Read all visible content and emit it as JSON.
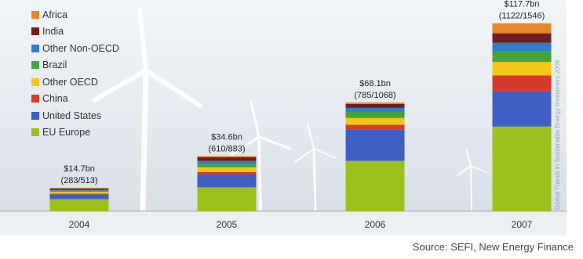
{
  "chart_data": {
    "type": "bar",
    "stacked": true,
    "categories": [
      "2004",
      "2005",
      "2006",
      "2007"
    ],
    "bar_labels": [
      {
        "amount": "$14.7bn",
        "deals": "(283/513)"
      },
      {
        "amount": "$34.6bn",
        "deals": "(610/883)"
      },
      {
        "amount": "$68.1bn",
        "deals": "(785/1068)"
      },
      {
        "amount": "$117.7bn",
        "deals": "(1122/1546)"
      }
    ],
    "totals": [
      14.7,
      34.6,
      68.1,
      117.7
    ],
    "series": [
      {
        "name": "EU Europe",
        "color": "#9cc11d",
        "values": [
          7.6,
          15.0,
          31.5,
          53.0
        ]
      },
      {
        "name": "United States",
        "color": "#3f5fc4",
        "values": [
          3.0,
          8.0,
          19.5,
          22.0
        ]
      },
      {
        "name": "China",
        "color": "#d63a2a",
        "values": [
          0.5,
          1.5,
          3.2,
          10.0
        ]
      },
      {
        "name": "Other OECD",
        "color": "#f2c716",
        "values": [
          1.1,
          3.0,
          4.2,
          8.5
        ]
      },
      {
        "name": "Brazil",
        "color": "#43a33c",
        "values": [
          0.7,
          2.0,
          3.8,
          6.5
        ]
      },
      {
        "name": "Other Non-OECD",
        "color": "#2f7fc8",
        "values": [
          0.6,
          2.0,
          2.5,
          5.5
        ]
      },
      {
        "name": "India",
        "color": "#6e1f22",
        "values": [
          0.8,
          2.3,
          2.4,
          5.9
        ]
      },
      {
        "name": "Africa",
        "color": "#e8862a",
        "values": [
          0.4,
          0.8,
          1.0,
          6.3
        ]
      }
    ],
    "ylim": [
      0,
      120
    ],
    "legend_position": "top-left"
  },
  "legend_entries": [
    "Africa",
    "India",
    "Other Non-OECD",
    "Brazil",
    "Other OECD",
    "China",
    "United States",
    "EU Europe"
  ],
  "source": "Source: SEFI, New Energy Finance",
  "watermark": "Global Trends in Sustainable Energy Investment 2008"
}
